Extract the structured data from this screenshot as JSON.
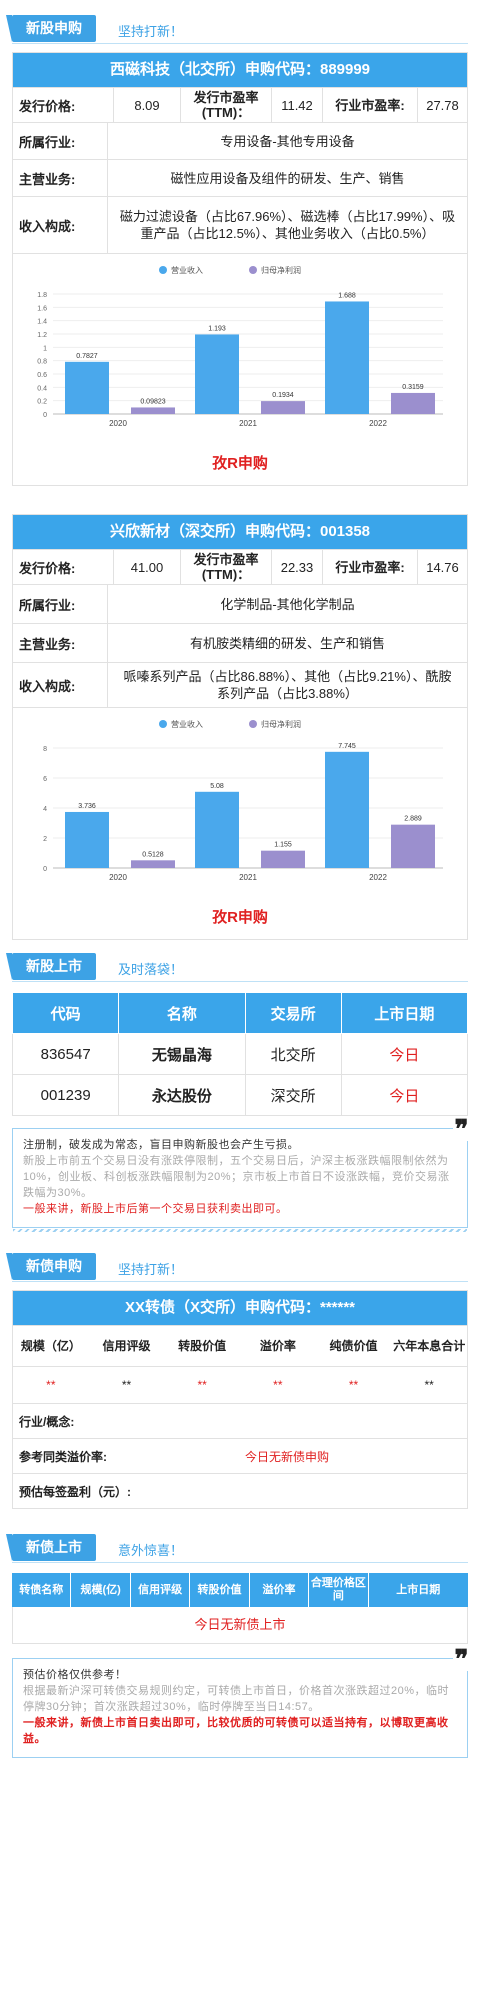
{
  "ipo_section": {
    "tag": "新股申购",
    "slogan": "坚持打新！"
  },
  "stock1": {
    "title": "西磁科技（北交所）申购代码：889999",
    "issue_price_label": "发行价格:",
    "issue_price": "8.09",
    "pe_ttm_label": "发行市盈率(TTM)：",
    "pe_ttm": "11.42",
    "industry_pe_label": "行业市盈率:",
    "industry_pe": "27.78",
    "industry_label": "所属行业:",
    "industry": "专用设备-其他专用设备",
    "business_label": "主营业务:",
    "business": "磁性应用设备及组件的研发、生产、销售",
    "revenue_label": "收入构成:",
    "revenue": "磁力过滤设备（占比67.96%）、磁选棒（占比17.99%）、吸重产品（占比12.5%）、其他业务收入（占比0.5%）",
    "action": "孜R申购"
  },
  "stock2": {
    "title": "兴欣新材（深交所）申购代码：001358",
    "issue_price_label": "发行价格:",
    "issue_price": "41.00",
    "pe_ttm_label": "发行市盈率(TTM)：",
    "pe_ttm": "22.33",
    "industry_pe_label": "行业市盈率:",
    "industry_pe": "14.76",
    "industry_label": "所属行业:",
    "industry": "化学制品-其他化学制品",
    "business_label": "主营业务:",
    "business": "有机胺类精细的研发、生产和销售",
    "revenue_label": "收入构成:",
    "revenue": "哌嗪系列产品（占比86.88%）、其他（占比9.21%）、酰胺系列产品（占比3.88%）",
    "action": "孜R申购"
  },
  "chart_data": [
    {
      "type": "bar",
      "categories": [
        "2020",
        "2021",
        "2022"
      ],
      "series": [
        {
          "name": "营业收入",
          "values": [
            0.7827,
            1.193,
            1.688
          ],
          "color": "#4aa8ec"
        },
        {
          "name": "归母净利润",
          "values": [
            0.09823,
            0.1934,
            0.3159
          ],
          "color": "#9b8fce"
        }
      ],
      "yticks": [
        "0",
        "0.2",
        "0.4",
        "0.6",
        "0.8",
        "1",
        "1.2",
        "1.4",
        "1.6",
        "1.8"
      ],
      "ylim": [
        0,
        1.8
      ],
      "legend": "top"
    },
    {
      "type": "bar",
      "categories": [
        "2020",
        "2021",
        "2022"
      ],
      "series": [
        {
          "name": "营业收入",
          "values": [
            3.736,
            5.08,
            7.745
          ],
          "color": "#4aa8ec"
        },
        {
          "name": "归母净利润",
          "values": [
            0.5128,
            1.155,
            2.889
          ],
          "color": "#9b8fce"
        }
      ],
      "yticks": [
        "0",
        "2",
        "4",
        "6",
        "8"
      ],
      "ylim": [
        0,
        8
      ],
      "legend": "top"
    }
  ],
  "listing_section": {
    "tag": "新股上市",
    "slogan": "及时落袋！",
    "headers": [
      "代码",
      "名称",
      "交易所",
      "上市日期"
    ],
    "rows": [
      {
        "code": "836547",
        "name": "无锡晶海",
        "exchange": "北交所",
        "date": "今日"
      },
      {
        "code": "001239",
        "name": "永达股份",
        "exchange": "深交所",
        "date": "今日"
      }
    ]
  },
  "note1": {
    "line1": "注册制，破发成为常态，盲目申购新股也会产生亏损。",
    "line2": "新股上市前五个交易日没有涨跌停限制，五个交易日后，沪深主板涨跌幅限制依然为10%，创业板、科创板涨跌幅限制为20%；京市板上市首日不设涨跌幅，竞价交易涨跌幅为30%。",
    "line3": "一般来讲，新股上市后第一个交易日获利卖出即可。"
  },
  "bond_section": {
    "tag": "新债申购",
    "slogan": "坚持打新！",
    "title": "XX转债（X交所）申购代码：******",
    "headers": [
      "规模（亿）",
      "信用评级",
      "转股价值",
      "溢价率",
      "纯债价值",
      "六年本息合计"
    ],
    "values": [
      "**",
      "**",
      "**",
      "**",
      "**",
      "**"
    ],
    "industry_label": "行业/概念:",
    "premium_label": "参考同类溢价率:",
    "premium_value": "今日无新债申购",
    "profit_label": "预估每签盈利（元）:"
  },
  "newbond_section": {
    "tag": "新债上市",
    "slogan": "意外惊喜！",
    "headers": [
      "转债名称",
      "规模(亿)",
      "信用评级",
      "转股价值",
      "溢价率",
      "合理价格区间",
      "上市日期"
    ],
    "empty": "今日无新债上市"
  },
  "note2": {
    "line1": "预估价格仅供参考！",
    "line2": "根据最新沪深可转债交易规则约定，可转债上市首日，价格首次涨跌超过20%，临时停牌30分钟；首次涨跌超过30%，临时停牌至当日14:57。",
    "line3": "一般来讲，新债上市首日卖出即可，比较优质的可转债可以适当持有，以博取更高收益。"
  }
}
